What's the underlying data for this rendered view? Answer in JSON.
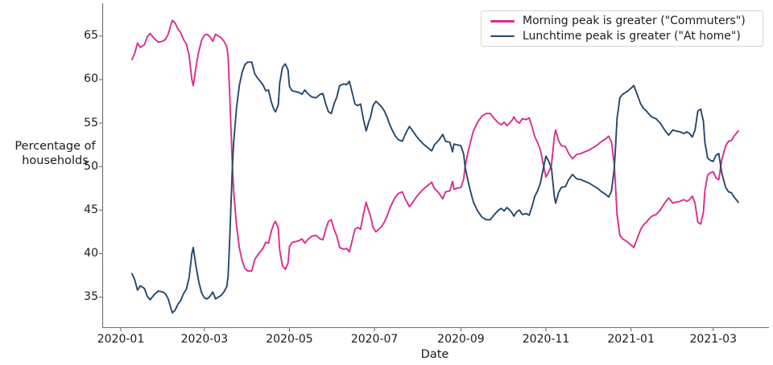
{
  "chart_data": {
    "type": "line",
    "xlabel": "Date",
    "ylabel_lines": [
      "Percentage of",
      "households"
    ],
    "y_ticks": [
      35,
      40,
      45,
      50,
      55,
      60,
      65
    ],
    "x_tick_labels": [
      "2020-01",
      "2020-03",
      "2020-05",
      "2020-07",
      "2020-09",
      "2020-11",
      "2021-01",
      "2021-03"
    ],
    "x_tick_dates": [
      "2020-01-01",
      "2020-03-01",
      "2020-05-01",
      "2020-07-01",
      "2020-09-01",
      "2020-11-01",
      "2021-01-01",
      "2021-03-01"
    ],
    "xlim": [
      "2019-12-19",
      "2021-04-10"
    ],
    "ylim": [
      31.5,
      68.4
    ],
    "grid": false,
    "axis_color": "#6b6b6b",
    "text_color": "#1a1a1a",
    "legend": {
      "position": "upper right",
      "border_color": "#d4d4d4"
    },
    "series": [
      {
        "name": "Morning peak is greater (\"Commuters\")",
        "color": "#da2d8b",
        "points_column": 1
      },
      {
        "name": "Lunchtime peak is greater (\"At home\")",
        "color": "#25486b",
        "points_column": 2
      }
    ],
    "points": [
      [
        "2020-01-09",
        62.3,
        37.7
      ],
      [
        "2020-01-11",
        63.0,
        37.0
      ],
      [
        "2020-01-13",
        64.2,
        35.8
      ],
      [
        "2020-01-15",
        63.7,
        36.3
      ],
      [
        "2020-01-18",
        64.0,
        36.0
      ],
      [
        "2020-01-20",
        64.9,
        35.1
      ],
      [
        "2020-01-22",
        65.3,
        34.7
      ],
      [
        "2020-01-25",
        64.7,
        35.3
      ],
      [
        "2020-01-28",
        64.3,
        35.7
      ],
      [
        "2020-01-31",
        64.4,
        35.6
      ],
      [
        "2020-02-02",
        64.6,
        35.4
      ],
      [
        "2020-02-04",
        65.2,
        34.8
      ],
      [
        "2020-02-06",
        66.3,
        33.7
      ],
      [
        "2020-02-07",
        66.8,
        33.2
      ],
      [
        "2020-02-09",
        66.5,
        33.5
      ],
      [
        "2020-02-11",
        65.8,
        34.2
      ],
      [
        "2020-02-13",
        65.4,
        34.6
      ],
      [
        "2020-02-15",
        64.6,
        35.4
      ],
      [
        "2020-02-17",
        64.1,
        35.9
      ],
      [
        "2020-02-19",
        62.8,
        37.2
      ],
      [
        "2020-02-21",
        60.0,
        40.0
      ],
      [
        "2020-02-22",
        59.3,
        40.7
      ],
      [
        "2020-02-24",
        61.5,
        38.5
      ],
      [
        "2020-02-26",
        63.3,
        36.7
      ],
      [
        "2020-02-28",
        64.5,
        35.5
      ],
      [
        "2020-03-01",
        65.1,
        34.9
      ],
      [
        "2020-03-03",
        65.2,
        34.8
      ],
      [
        "2020-03-05",
        64.9,
        35.1
      ],
      [
        "2020-03-07",
        64.4,
        35.6
      ],
      [
        "2020-03-09",
        65.2,
        34.8
      ],
      [
        "2020-03-11",
        65.0,
        35.0
      ],
      [
        "2020-03-13",
        64.8,
        35.2
      ],
      [
        "2020-03-15",
        64.4,
        35.6
      ],
      [
        "2020-03-17",
        63.8,
        36.2
      ],
      [
        "2020-03-18",
        62.6,
        37.4
      ],
      [
        "2020-03-19",
        59.0,
        41.0
      ],
      [
        "2020-03-20",
        54.5,
        45.5
      ],
      [
        "2020-03-21",
        50.3,
        49.7
      ],
      [
        "2020-03-22",
        47.2,
        52.8
      ],
      [
        "2020-03-24",
        43.3,
        56.7
      ],
      [
        "2020-03-26",
        40.7,
        59.3
      ],
      [
        "2020-03-28",
        39.2,
        60.8
      ],
      [
        "2020-03-30",
        38.3,
        61.7
      ],
      [
        "2020-04-01",
        38.0,
        62.0
      ],
      [
        "2020-04-04",
        38.0,
        62.0
      ],
      [
        "2020-04-06",
        39.3,
        60.7
      ],
      [
        "2020-04-08",
        39.8,
        60.2
      ],
      [
        "2020-04-10",
        40.2,
        59.8
      ],
      [
        "2020-04-12",
        40.6,
        59.4
      ],
      [
        "2020-04-14",
        41.3,
        58.7
      ],
      [
        "2020-04-16",
        41.2,
        58.8
      ],
      [
        "2020-04-18",
        42.6,
        57.4
      ],
      [
        "2020-04-20",
        43.5,
        56.5
      ],
      [
        "2020-04-21",
        43.7,
        56.3
      ],
      [
        "2020-04-23",
        42.9,
        57.1
      ],
      [
        "2020-04-24",
        40.4,
        59.6
      ],
      [
        "2020-04-26",
        38.6,
        61.4
      ],
      [
        "2020-04-28",
        38.2,
        61.8
      ],
      [
        "2020-04-30",
        38.9,
        61.1
      ],
      [
        "2020-05-01",
        40.8,
        59.2
      ],
      [
        "2020-05-03",
        41.3,
        58.7
      ],
      [
        "2020-05-06",
        41.4,
        58.6
      ],
      [
        "2020-05-08",
        41.5,
        58.5
      ],
      [
        "2020-05-10",
        41.7,
        58.3
      ],
      [
        "2020-05-12",
        41.2,
        58.8
      ],
      [
        "2020-05-14",
        41.6,
        58.4
      ],
      [
        "2020-05-17",
        42.0,
        58.0
      ],
      [
        "2020-05-20",
        42.1,
        57.9
      ],
      [
        "2020-05-23",
        41.7,
        58.3
      ],
      [
        "2020-05-25",
        41.6,
        58.4
      ],
      [
        "2020-05-27",
        42.8,
        57.2
      ],
      [
        "2020-05-29",
        43.7,
        56.3
      ],
      [
        "2020-05-31",
        43.9,
        56.1
      ],
      [
        "2020-06-02",
        42.8,
        57.2
      ],
      [
        "2020-06-04",
        42.0,
        58.0
      ],
      [
        "2020-06-06",
        40.7,
        59.3
      ],
      [
        "2020-06-09",
        40.5,
        59.5
      ],
      [
        "2020-06-11",
        40.6,
        59.4
      ],
      [
        "2020-06-13",
        40.2,
        59.8
      ],
      [
        "2020-06-15",
        41.5,
        58.5
      ],
      [
        "2020-06-17",
        42.8,
        57.2
      ],
      [
        "2020-06-19",
        43.0,
        57.0
      ],
      [
        "2020-06-21",
        42.8,
        57.2
      ],
      [
        "2020-06-23",
        44.5,
        55.5
      ],
      [
        "2020-06-25",
        45.9,
        54.1
      ],
      [
        "2020-06-27",
        44.8,
        55.2
      ],
      [
        "2020-06-28",
        44.4,
        55.6
      ],
      [
        "2020-06-30",
        43.0,
        57.0
      ],
      [
        "2020-07-02",
        42.5,
        57.5
      ],
      [
        "2020-07-04",
        42.8,
        57.2
      ],
      [
        "2020-07-06",
        43.1,
        56.9
      ],
      [
        "2020-07-08",
        43.6,
        56.4
      ],
      [
        "2020-07-10",
        44.3,
        55.7
      ],
      [
        "2020-07-12",
        45.2,
        54.8
      ],
      [
        "2020-07-14",
        45.9,
        54.1
      ],
      [
        "2020-07-16",
        46.5,
        53.5
      ],
      [
        "2020-07-18",
        46.9,
        53.1
      ],
      [
        "2020-07-21",
        47.1,
        52.9
      ],
      [
        "2020-07-23",
        46.3,
        53.7
      ],
      [
        "2020-07-26",
        45.4,
        54.6
      ],
      [
        "2020-07-28",
        45.8,
        54.2
      ],
      [
        "2020-07-31",
        46.5,
        53.5
      ],
      [
        "2020-08-02",
        46.9,
        53.1
      ],
      [
        "2020-08-05",
        47.4,
        52.6
      ],
      [
        "2020-08-08",
        47.8,
        52.2
      ],
      [
        "2020-08-11",
        48.2,
        51.8
      ],
      [
        "2020-08-13",
        47.5,
        52.5
      ],
      [
        "2020-08-16",
        47.0,
        53.0
      ],
      [
        "2020-08-19",
        46.3,
        53.7
      ],
      [
        "2020-08-21",
        47.1,
        52.9
      ],
      [
        "2020-08-24",
        47.2,
        52.8
      ],
      [
        "2020-08-26",
        48.3,
        51.7
      ],
      [
        "2020-08-27",
        47.4,
        52.6
      ],
      [
        "2020-08-29",
        47.5,
        52.5
      ],
      [
        "2020-09-01",
        47.6,
        52.4
      ],
      [
        "2020-09-03",
        48.6,
        51.4
      ],
      [
        "2020-09-04",
        50.0,
        50.0
      ],
      [
        "2020-09-06",
        51.6,
        48.4
      ],
      [
        "2020-09-08",
        52.9,
        47.1
      ],
      [
        "2020-09-10",
        54.1,
        45.9
      ],
      [
        "2020-09-13",
        55.1,
        44.9
      ],
      [
        "2020-09-16",
        55.8,
        44.2
      ],
      [
        "2020-09-19",
        56.1,
        43.9
      ],
      [
        "2020-09-22",
        56.1,
        43.9
      ],
      [
        "2020-09-25",
        55.5,
        44.5
      ],
      [
        "2020-09-28",
        55.0,
        45.0
      ],
      [
        "2020-09-30",
        54.8,
        45.2
      ],
      [
        "2020-10-02",
        55.1,
        44.9
      ],
      [
        "2020-10-04",
        54.7,
        45.3
      ],
      [
        "2020-10-06",
        55.0,
        45.0
      ],
      [
        "2020-10-08",
        55.4,
        44.6
      ],
      [
        "2020-10-09",
        55.7,
        44.3
      ],
      [
        "2020-10-11",
        55.2,
        44.8
      ],
      [
        "2020-10-13",
        55.0,
        45.0
      ],
      [
        "2020-10-15",
        55.5,
        44.5
      ],
      [
        "2020-10-18",
        55.4,
        44.6
      ],
      [
        "2020-10-20",
        55.6,
        44.4
      ],
      [
        "2020-10-22",
        54.6,
        45.4
      ],
      [
        "2020-10-24",
        53.4,
        46.6
      ],
      [
        "2020-10-26",
        52.8,
        47.2
      ],
      [
        "2020-10-28",
        51.9,
        48.1
      ],
      [
        "2020-10-30",
        50.3,
        49.7
      ],
      [
        "2020-11-01",
        48.8,
        51.2
      ],
      [
        "2020-11-03",
        49.4,
        50.6
      ],
      [
        "2020-11-05",
        50.2,
        49.8
      ],
      [
        "2020-11-07",
        53.4,
        46.6
      ],
      [
        "2020-11-08",
        54.2,
        45.8
      ],
      [
        "2020-11-10",
        53.0,
        47.0
      ],
      [
        "2020-11-12",
        52.4,
        47.6
      ],
      [
        "2020-11-15",
        52.3,
        47.7
      ],
      [
        "2020-11-17",
        51.6,
        48.4
      ],
      [
        "2020-11-20",
        50.9,
        49.1
      ],
      [
        "2020-11-23",
        51.4,
        48.6
      ],
      [
        "2020-11-26",
        51.5,
        48.5
      ],
      [
        "2020-11-29",
        51.7,
        48.3
      ],
      [
        "2020-12-02",
        51.9,
        48.1
      ],
      [
        "2020-12-05",
        52.2,
        47.8
      ],
      [
        "2020-12-08",
        52.5,
        47.5
      ],
      [
        "2020-12-11",
        52.9,
        47.1
      ],
      [
        "2020-12-14",
        53.2,
        46.8
      ],
      [
        "2020-12-16",
        53.5,
        46.5
      ],
      [
        "2020-12-18",
        52.8,
        47.2
      ],
      [
        "2020-12-20",
        50.3,
        49.7
      ],
      [
        "2020-12-21",
        47.5,
        52.5
      ],
      [
        "2020-12-22",
        44.5,
        55.5
      ],
      [
        "2020-12-24",
        42.1,
        57.9
      ],
      [
        "2020-12-26",
        41.7,
        58.3
      ],
      [
        "2020-12-29",
        41.4,
        58.6
      ],
      [
        "2021-01-01",
        41.0,
        59.0
      ],
      [
        "2021-01-03",
        40.7,
        59.3
      ],
      [
        "2021-01-05",
        41.5,
        58.5
      ],
      [
        "2021-01-08",
        42.8,
        57.2
      ],
      [
        "2021-01-10",
        43.3,
        56.7
      ],
      [
        "2021-01-12",
        43.6,
        56.4
      ],
      [
        "2021-01-14",
        44.0,
        56.0
      ],
      [
        "2021-01-16",
        44.3,
        55.7
      ],
      [
        "2021-01-19",
        44.5,
        55.5
      ],
      [
        "2021-01-22",
        45.0,
        55.0
      ],
      [
        "2021-01-24",
        45.5,
        54.5
      ],
      [
        "2021-01-26",
        46.0,
        54.0
      ],
      [
        "2021-01-28",
        46.4,
        53.6
      ],
      [
        "2021-01-31",
        45.8,
        54.2
      ],
      [
        "2021-02-02",
        45.9,
        54.1
      ],
      [
        "2021-02-05",
        46.0,
        54.0
      ],
      [
        "2021-02-08",
        46.2,
        53.8
      ],
      [
        "2021-02-10",
        46.0,
        54.0
      ],
      [
        "2021-02-12",
        46.2,
        53.8
      ],
      [
        "2021-02-14",
        46.6,
        53.4
      ],
      [
        "2021-02-16",
        45.8,
        54.2
      ],
      [
        "2021-02-18",
        43.6,
        56.4
      ],
      [
        "2021-02-20",
        43.4,
        56.6
      ],
      [
        "2021-02-22",
        44.8,
        55.2
      ],
      [
        "2021-02-23",
        47.2,
        52.8
      ],
      [
        "2021-02-25",
        49.0,
        51.0
      ],
      [
        "2021-02-27",
        49.3,
        50.7
      ],
      [
        "2021-03-01",
        49.4,
        50.6
      ],
      [
        "2021-03-03",
        48.7,
        51.3
      ],
      [
        "2021-03-05",
        48.5,
        51.5
      ],
      [
        "2021-03-07",
        50.6,
        49.4
      ],
      [
        "2021-03-08",
        51.3,
        48.7
      ],
      [
        "2021-03-10",
        52.4,
        47.6
      ],
      [
        "2021-03-12",
        52.9,
        47.1
      ],
      [
        "2021-03-14",
        53.0,
        47.0
      ],
      [
        "2021-03-16",
        53.5,
        46.5
      ],
      [
        "2021-03-18",
        53.9,
        46.1
      ],
      [
        "2021-03-19",
        54.1,
        45.9
      ]
    ]
  }
}
